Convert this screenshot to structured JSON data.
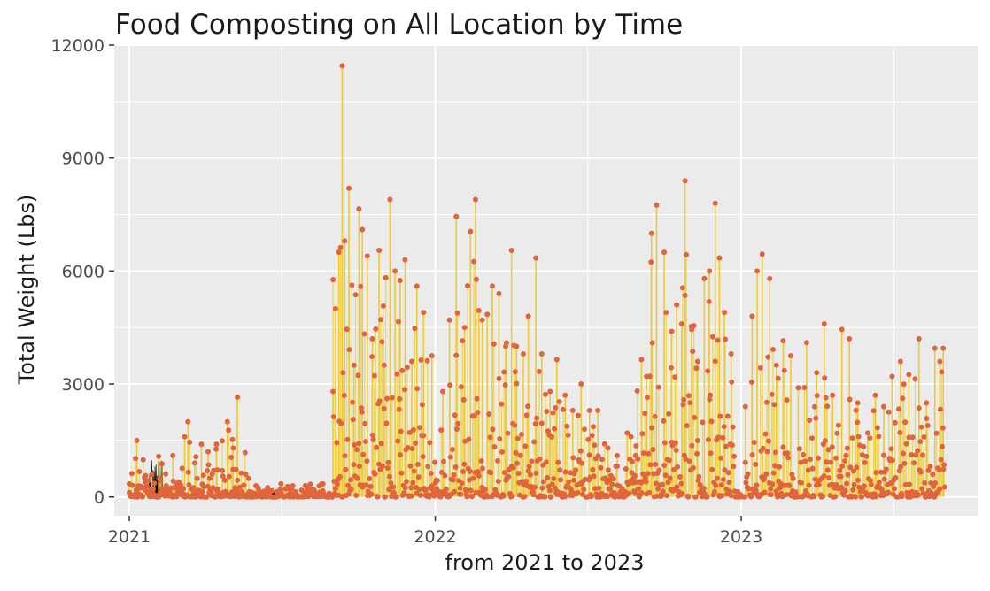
{
  "chart_data": {
    "type": "line",
    "title": "Food Composting on All Location by Time",
    "xlabel": "from 2021 to 2023",
    "ylabel": "Total Weight (Lbs)",
    "x_ticks": [
      "2021",
      "2022",
      "2023"
    ],
    "y_ticks": [
      "0",
      "3000",
      "6000",
      "9000",
      "12000"
    ],
    "xlim": [
      "2020-12-14",
      "2023-10-10"
    ],
    "ylim": [
      -500,
      12000
    ],
    "grid": true,
    "legend": "none",
    "colors": {
      "panel": "#ebebeb",
      "grid": "#ffffff",
      "line": "#f0c930",
      "line_fill": "#efd24a",
      "point": "#e0643c",
      "early_fill": "#000000"
    },
    "series": [
      {
        "values": [
          [
            "2021-01-01",
            350
          ],
          [
            "2021-01-10",
            1500
          ],
          [
            "2021-01-20",
            400
          ],
          [
            "2021-01-28",
            600
          ],
          [
            "2021-02-05",
            1080
          ],
          [
            "2021-02-14",
            300
          ],
          [
            "2021-02-22",
            1100
          ],
          [
            "2021-03-01",
            400
          ],
          [
            "2021-03-08",
            1600
          ],
          [
            "2021-03-12",
            2000
          ],
          [
            "2021-03-20",
            900
          ],
          [
            "2021-03-28",
            1400
          ],
          [
            "2021-04-05",
            1200
          ],
          [
            "2021-04-15",
            1400
          ],
          [
            "2021-04-22",
            700
          ],
          [
            "2021-04-28",
            2000
          ],
          [
            "2021-05-05",
            1300
          ],
          [
            "2021-05-10",
            2650
          ],
          [
            "2021-05-20",
            600
          ],
          [
            "2021-06-01",
            300
          ],
          [
            "2021-06-15",
            250
          ],
          [
            "2021-07-01",
            350
          ],
          [
            "2021-07-15",
            300
          ],
          [
            "2021-08-01",
            250
          ],
          [
            "2021-08-20",
            350
          ],
          [
            "2021-09-01",
            2800
          ],
          [
            "2021-09-04",
            5000
          ],
          [
            "2021-09-08",
            6500
          ],
          [
            "2021-09-12",
            11450
          ],
          [
            "2021-09-15",
            6800
          ],
          [
            "2021-09-20",
            8200
          ],
          [
            "2021-09-26",
            3500
          ],
          [
            "2021-10-02",
            7650
          ],
          [
            "2021-10-06",
            7100
          ],
          [
            "2021-10-12",
            6400
          ],
          [
            "2021-10-18",
            4200
          ],
          [
            "2021-10-26",
            6550
          ],
          [
            "2021-11-01",
            3500
          ],
          [
            "2021-11-08",
            7900
          ],
          [
            "2021-11-14",
            6000
          ],
          [
            "2021-11-20",
            5750
          ],
          [
            "2021-11-26",
            6300
          ],
          [
            "2021-12-04",
            3600
          ],
          [
            "2021-12-10",
            5600
          ],
          [
            "2021-12-18",
            4900
          ],
          [
            "2021-12-28",
            3750
          ],
          [
            "2022-01-10",
            2800
          ],
          [
            "2022-01-18",
            4700
          ],
          [
            "2022-01-26",
            7450
          ],
          [
            "2022-02-05",
            4500
          ],
          [
            "2022-02-12",
            7050
          ],
          [
            "2022-02-18",
            7900
          ],
          [
            "2022-02-22",
            4950
          ],
          [
            "2022-02-26",
            4700
          ],
          [
            "2022-03-04",
            4850
          ],
          [
            "2022-03-10",
            5600
          ],
          [
            "2022-03-18",
            5400
          ],
          [
            "2022-03-26",
            4000
          ],
          [
            "2022-04-02",
            6550
          ],
          [
            "2022-04-08",
            4000
          ],
          [
            "2022-04-16",
            3800
          ],
          [
            "2022-04-22",
            4800
          ],
          [
            "2022-05-01",
            6350
          ],
          [
            "2022-05-08",
            3800
          ],
          [
            "2022-05-18",
            2800
          ],
          [
            "2022-05-26",
            3650
          ],
          [
            "2022-06-05",
            2700
          ],
          [
            "2022-06-14",
            2300
          ],
          [
            "2022-06-24",
            3000
          ],
          [
            "2022-07-04",
            2300
          ],
          [
            "2022-07-14",
            2300
          ],
          [
            "2022-07-26",
            1300
          ],
          [
            "2022-08-06",
            1100
          ],
          [
            "2022-08-18",
            1700
          ],
          [
            "2022-08-28",
            1100
          ],
          [
            "2022-09-04",
            3650
          ],
          [
            "2022-09-10",
            3200
          ],
          [
            "2022-09-16",
            7000
          ],
          [
            "2022-09-22",
            7750
          ],
          [
            "2022-10-01",
            6500
          ],
          [
            "2022-10-10",
            4400
          ],
          [
            "2022-10-16",
            5100
          ],
          [
            "2022-10-22",
            4600
          ],
          [
            "2022-10-26",
            8400
          ],
          [
            "2022-11-03",
            4450
          ],
          [
            "2022-11-10",
            3600
          ],
          [
            "2022-11-18",
            5800
          ],
          [
            "2022-11-24",
            6000
          ],
          [
            "2022-12-01",
            7800
          ],
          [
            "2022-12-06",
            6350
          ],
          [
            "2022-12-12",
            4900
          ],
          [
            "2022-12-20",
            3800
          ],
          [
            "2023-01-06",
            2400
          ],
          [
            "2023-01-14",
            4800
          ],
          [
            "2023-01-20",
            6000
          ],
          [
            "2023-01-26",
            6450
          ],
          [
            "2023-02-04",
            5800
          ],
          [
            "2023-02-12",
            3500
          ],
          [
            "2023-02-20",
            4150
          ],
          [
            "2023-03-01",
            3750
          ],
          [
            "2023-03-10",
            2900
          ],
          [
            "2023-03-20",
            4100
          ],
          [
            "2023-04-01",
            3300
          ],
          [
            "2023-04-10",
            4600
          ],
          [
            "2023-04-20",
            2700
          ],
          [
            "2023-05-01",
            4450
          ],
          [
            "2023-05-10",
            4200
          ],
          [
            "2023-05-20",
            2500
          ],
          [
            "2023-06-01",
            1700
          ],
          [
            "2023-06-10",
            2700
          ],
          [
            "2023-06-20",
            2400
          ],
          [
            "2023-06-30",
            3200
          ],
          [
            "2023-07-10",
            3600
          ],
          [
            "2023-07-20",
            3250
          ],
          [
            "2023-08-01",
            4200
          ],
          [
            "2023-08-10",
            2500
          ],
          [
            "2023-08-20",
            3950
          ],
          [
            "2023-08-26",
            3600
          ],
          [
            "2023-08-30",
            3950
          ]
        ]
      }
    ]
  }
}
